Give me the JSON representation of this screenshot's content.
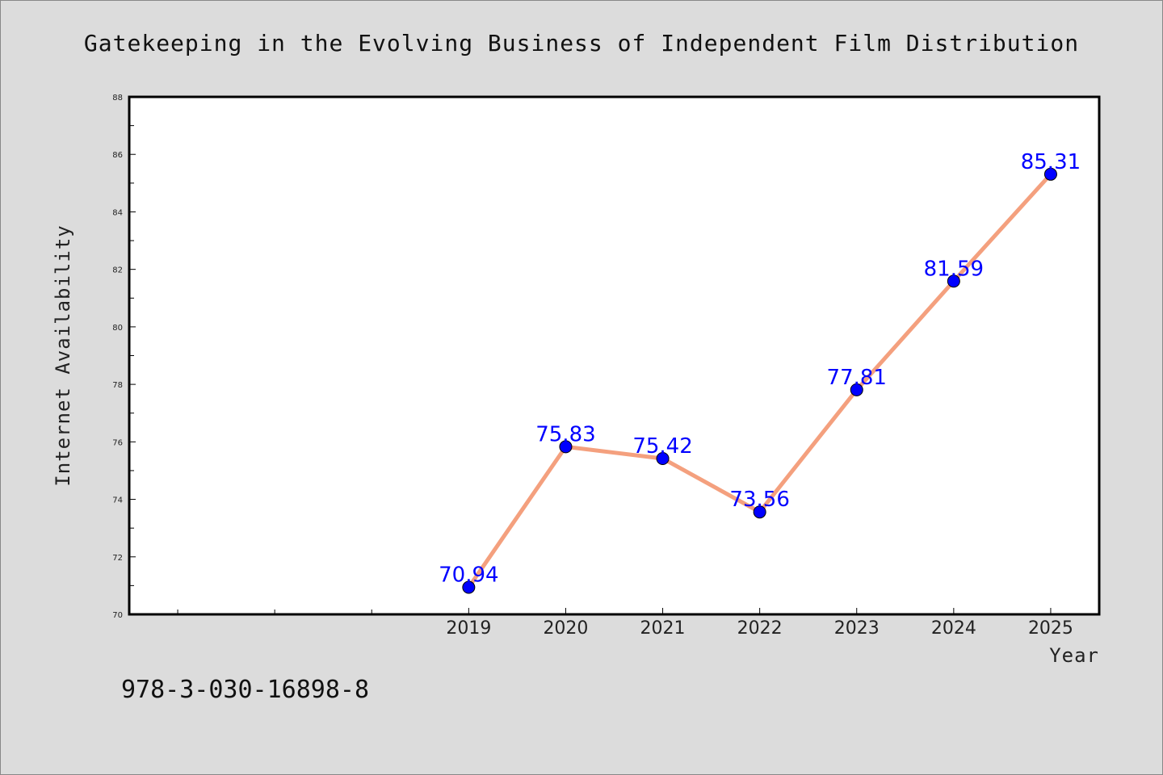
{
  "chart_data": {
    "type": "line",
    "title": "Gatekeeping in the Evolving Business of Independent Film Distribution",
    "xlabel": "Year",
    "ylabel": "Internet Availability",
    "x": [
      "2019",
      "2020",
      "2021",
      "2022",
      "2023",
      "2024",
      "2025"
    ],
    "series": [
      {
        "values": [
          70.94,
          75.83,
          75.42,
          73.56,
          77.81,
          81.59,
          85.31
        ],
        "data_labels": [
          "70.94",
          "75.83",
          "75.42",
          "73.56",
          "77.81",
          "81.59",
          "85.31"
        ],
        "line_color": "#f4a07e",
        "marker_color": "#0000ff"
      }
    ],
    "ylim": [
      70,
      88
    ],
    "yticks": [
      "70",
      "72",
      "74",
      "76",
      "78",
      "80",
      "82",
      "84",
      "86",
      "88"
    ],
    "xlim": [
      2015.5,
      2025.5
    ],
    "grid": false,
    "legend": "none"
  },
  "footer": {
    "isbn": "978-3-030-16898-8"
  },
  "colors": {
    "background": "#dcdcdc",
    "plot_area": "#ffffff",
    "line": "#f4a07e",
    "marker": "#0000ff",
    "data_label": "#0000ff"
  }
}
